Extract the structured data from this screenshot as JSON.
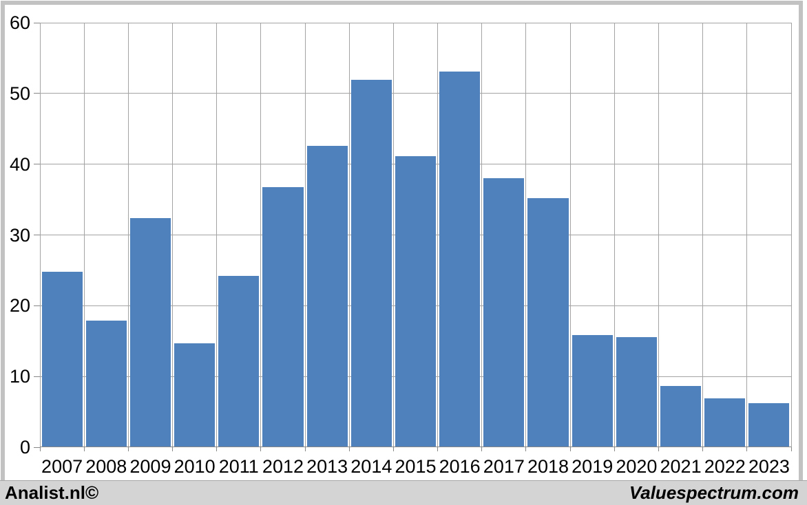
{
  "chart_data": {
    "type": "bar",
    "title": "",
    "xlabel": "",
    "ylabel": "",
    "categories": [
      "2007",
      "2008",
      "2009",
      "2010",
      "2011",
      "2012",
      "2013",
      "2014",
      "2015",
      "2016",
      "2017",
      "2018",
      "2019",
      "2020",
      "2021",
      "2022",
      "2023"
    ],
    "values": [
      24.8,
      17.9,
      32.4,
      14.7,
      24.2,
      36.8,
      42.6,
      51.9,
      41.1,
      53.1,
      38.0,
      35.2,
      15.9,
      15.6,
      8.7,
      6.9,
      6.2
    ],
    "ylim": [
      0,
      60
    ],
    "yticks": [
      0,
      10,
      20,
      30,
      40,
      50,
      60
    ],
    "grid": true,
    "legend": false,
    "bar_color": "#4f81bd",
    "gridline_color": "#a3a3a3",
    "axis_color": "#878787"
  },
  "footer": {
    "left_text": "Analist.nl©",
    "right_text": "Valuespectrum.com",
    "background": "#d4d4d4"
  }
}
